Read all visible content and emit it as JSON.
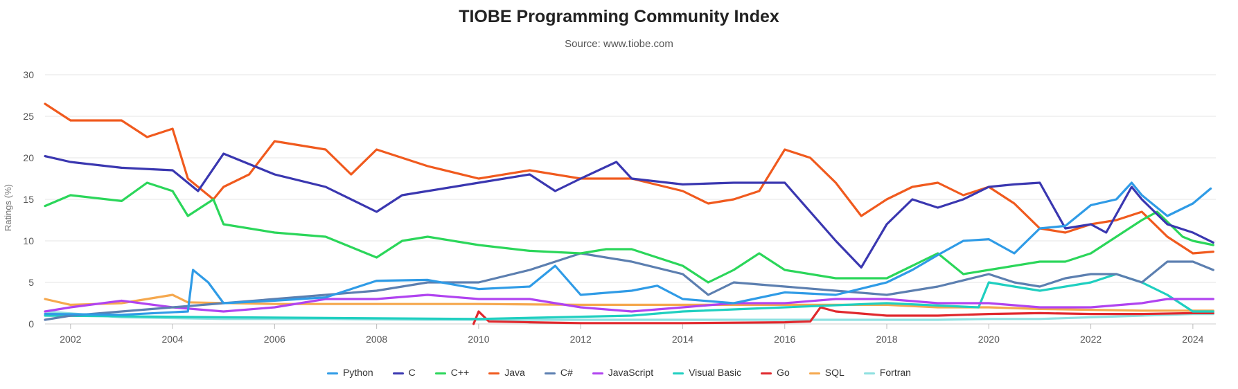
{
  "chart_data": {
    "type": "line",
    "title": "TIOBE Programming Community Index",
    "subtitle": "Source: www.tiobe.com",
    "xlabel": "",
    "ylabel": "Ratings (%)",
    "xlim": [
      2001.5,
      2024.45
    ],
    "ylim": [
      0,
      30
    ],
    "yticks": [
      0,
      5,
      10,
      15,
      20,
      25,
      30
    ],
    "xticks": [
      2002,
      2004,
      2006,
      2008,
      2010,
      2012,
      2014,
      2016,
      2018,
      2020,
      2022,
      2024
    ],
    "grid": true,
    "legend_position": "bottom",
    "series": [
      {
        "name": "Python",
        "color": "#2f9be6",
        "points": [
          [
            2001.5,
            1.2
          ],
          [
            2003,
            1.1
          ],
          [
            2004.3,
            1.5
          ],
          [
            2004.4,
            6.5
          ],
          [
            2004.7,
            5
          ],
          [
            2005,
            2.5
          ],
          [
            2006,
            2.8
          ],
          [
            2007,
            3.2
          ],
          [
            2008,
            5.2
          ],
          [
            2009,
            5.3
          ],
          [
            2010,
            4.2
          ],
          [
            2011,
            4.5
          ],
          [
            2011.5,
            7
          ],
          [
            2012,
            3.5
          ],
          [
            2013,
            4
          ],
          [
            2013.5,
            4.6
          ],
          [
            2014,
            3
          ],
          [
            2015,
            2.5
          ],
          [
            2016,
            3.8
          ],
          [
            2017,
            3.5
          ],
          [
            2018,
            5
          ],
          [
            2018.5,
            6.5
          ],
          [
            2019,
            8.3
          ],
          [
            2019.5,
            10
          ],
          [
            2020,
            10.2
          ],
          [
            2020.5,
            8.5
          ],
          [
            2021,
            11.5
          ],
          [
            2021.5,
            11.8
          ],
          [
            2022,
            14.3
          ],
          [
            2022.5,
            15
          ],
          [
            2022.8,
            17
          ],
          [
            2023,
            15.5
          ],
          [
            2023.5,
            13
          ],
          [
            2024,
            14.5
          ],
          [
            2024.35,
            16.3
          ]
        ]
      },
      {
        "name": "C",
        "color": "#3a37b0",
        "points": [
          [
            2001.5,
            20.2
          ],
          [
            2002,
            19.5
          ],
          [
            2003,
            18.8
          ],
          [
            2004,
            18.5
          ],
          [
            2004.5,
            16
          ],
          [
            2005,
            20.5
          ],
          [
            2006,
            18
          ],
          [
            2007,
            16.5
          ],
          [
            2008,
            13.5
          ],
          [
            2008.5,
            15.5
          ],
          [
            2009,
            16
          ],
          [
            2010,
            17
          ],
          [
            2011,
            18
          ],
          [
            2011.5,
            16
          ],
          [
            2012,
            17.5
          ],
          [
            2012.7,
            19.5
          ],
          [
            2013,
            17.5
          ],
          [
            2014,
            16.8
          ],
          [
            2015,
            17
          ],
          [
            2016,
            17
          ],
          [
            2017,
            10
          ],
          [
            2017.5,
            6.8
          ],
          [
            2018,
            12
          ],
          [
            2018.5,
            15
          ],
          [
            2019,
            14
          ],
          [
            2019.5,
            15
          ],
          [
            2020,
            16.5
          ],
          [
            2020.5,
            16.8
          ],
          [
            2021,
            17
          ],
          [
            2021.5,
            11.5
          ],
          [
            2022,
            12
          ],
          [
            2022.3,
            11
          ],
          [
            2022.8,
            16.5
          ],
          [
            2023,
            15
          ],
          [
            2023.5,
            12
          ],
          [
            2024,
            11
          ],
          [
            2024.4,
            9.8
          ]
        ]
      },
      {
        "name": "C++",
        "color": "#2bd65a",
        "points": [
          [
            2001.5,
            14.2
          ],
          [
            2002,
            15.5
          ],
          [
            2003,
            14.8
          ],
          [
            2003.5,
            17
          ],
          [
            2004,
            16
          ],
          [
            2004.3,
            13
          ],
          [
            2004.8,
            15
          ],
          [
            2005,
            12
          ],
          [
            2006,
            11
          ],
          [
            2007,
            10.5
          ],
          [
            2008,
            8
          ],
          [
            2008.5,
            10
          ],
          [
            2009,
            10.5
          ],
          [
            2010,
            9.5
          ],
          [
            2011,
            8.8
          ],
          [
            2012,
            8.5
          ],
          [
            2012.5,
            9
          ],
          [
            2013,
            9
          ],
          [
            2014,
            7
          ],
          [
            2014.5,
            5
          ],
          [
            2015,
            6.5
          ],
          [
            2015.5,
            8.5
          ],
          [
            2016,
            6.5
          ],
          [
            2017,
            5.5
          ],
          [
            2018,
            5.5
          ],
          [
            2018.5,
            7
          ],
          [
            2019,
            8.5
          ],
          [
            2019.5,
            6
          ],
          [
            2020,
            6.5
          ],
          [
            2021,
            7.5
          ],
          [
            2021.5,
            7.5
          ],
          [
            2022,
            8.5
          ],
          [
            2022.5,
            10.5
          ],
          [
            2023,
            12.5
          ],
          [
            2023.3,
            13.5
          ],
          [
            2023.8,
            10.5
          ],
          [
            2024,
            10
          ],
          [
            2024.4,
            9.5
          ]
        ]
      },
      {
        "name": "Java",
        "color": "#f05a1e",
        "points": [
          [
            2001.5,
            26.5
          ],
          [
            2002,
            24.5
          ],
          [
            2003,
            24.5
          ],
          [
            2003.5,
            22.5
          ],
          [
            2004,
            23.5
          ],
          [
            2004.3,
            17.5
          ],
          [
            2004.8,
            15
          ],
          [
            2005,
            16.5
          ],
          [
            2005.5,
            18
          ],
          [
            2006,
            22
          ],
          [
            2007,
            21
          ],
          [
            2007.5,
            18
          ],
          [
            2008,
            21
          ],
          [
            2009,
            19
          ],
          [
            2010,
            17.5
          ],
          [
            2011,
            18.5
          ],
          [
            2012,
            17.5
          ],
          [
            2013,
            17.5
          ],
          [
            2014,
            16
          ],
          [
            2014.5,
            14.5
          ],
          [
            2015,
            15
          ],
          [
            2015.5,
            16
          ],
          [
            2016,
            21
          ],
          [
            2016.5,
            20
          ],
          [
            2017,
            17
          ],
          [
            2017.5,
            13
          ],
          [
            2018,
            15
          ],
          [
            2018.5,
            16.5
          ],
          [
            2019,
            17
          ],
          [
            2019.5,
            15.5
          ],
          [
            2020,
            16.5
          ],
          [
            2020.5,
            14.5
          ],
          [
            2021,
            11.5
          ],
          [
            2021.5,
            11
          ],
          [
            2022,
            12
          ],
          [
            2022.5,
            12.5
          ],
          [
            2023,
            13.5
          ],
          [
            2023.5,
            10.5
          ],
          [
            2024,
            8.5
          ],
          [
            2024.4,
            8.7
          ]
        ]
      },
      {
        "name": "C#",
        "color": "#5c7fb0",
        "points": [
          [
            2001.5,
            0.5
          ],
          [
            2002,
            1
          ],
          [
            2003,
            1.5
          ],
          [
            2004,
            2
          ],
          [
            2005,
            2.5
          ],
          [
            2006,
            3
          ],
          [
            2007,
            3.5
          ],
          [
            2008,
            4
          ],
          [
            2009,
            5
          ],
          [
            2010,
            5
          ],
          [
            2011,
            6.5
          ],
          [
            2011.5,
            7.5
          ],
          [
            2012,
            8.5
          ],
          [
            2013,
            7.5
          ],
          [
            2014,
            6
          ],
          [
            2014.5,
            3.5
          ],
          [
            2015,
            5
          ],
          [
            2016,
            4.5
          ],
          [
            2017,
            4
          ],
          [
            2018,
            3.5
          ],
          [
            2019,
            4.5
          ],
          [
            2020,
            6
          ],
          [
            2020.5,
            5
          ],
          [
            2021,
            4.5
          ],
          [
            2021.5,
            5.5
          ],
          [
            2022,
            6
          ],
          [
            2022.5,
            6
          ],
          [
            2023,
            5
          ],
          [
            2023.5,
            7.5
          ],
          [
            2024,
            7.5
          ],
          [
            2024.4,
            6.5
          ]
        ]
      },
      {
        "name": "JavaScript",
        "color": "#b043f0",
        "points": [
          [
            2001.5,
            1.5
          ],
          [
            2002,
            2
          ],
          [
            2003,
            2.8
          ],
          [
            2004,
            2
          ],
          [
            2005,
            1.5
          ],
          [
            2006,
            2
          ],
          [
            2007,
            3
          ],
          [
            2008,
            3
          ],
          [
            2009,
            3.5
          ],
          [
            2010,
            3
          ],
          [
            2011,
            3
          ],
          [
            2012,
            2
          ],
          [
            2013,
            1.5
          ],
          [
            2014,
            2
          ],
          [
            2015,
            2.5
          ],
          [
            2016,
            2.5
          ],
          [
            2017,
            3
          ],
          [
            2018,
            3
          ],
          [
            2019,
            2.5
          ],
          [
            2020,
            2.5
          ],
          [
            2021,
            2
          ],
          [
            2022,
            2
          ],
          [
            2023,
            2.5
          ],
          [
            2023.5,
            3
          ],
          [
            2024,
            3
          ],
          [
            2024.4,
            3
          ]
        ]
      },
      {
        "name": "Visual Basic",
        "color": "#1fcfc0",
        "points": [
          [
            2001.5,
            1
          ],
          [
            2005,
            0.8
          ],
          [
            2010,
            0.6
          ],
          [
            2013,
            1
          ],
          [
            2014,
            1.5
          ],
          [
            2016,
            2
          ],
          [
            2018,
            2.5
          ],
          [
            2019.8,
            2
          ],
          [
            2020,
            5
          ],
          [
            2021,
            4
          ],
          [
            2022,
            5
          ],
          [
            2022.5,
            6
          ],
          [
            2023,
            5
          ],
          [
            2023.5,
            3.5
          ],
          [
            2024,
            1.5
          ],
          [
            2024.4,
            1.5
          ]
        ]
      },
      {
        "name": "Go",
        "color": "#e0282d",
        "points": [
          [
            2009.9,
            0
          ],
          [
            2010,
            1.5
          ],
          [
            2010.2,
            0.3
          ],
          [
            2011,
            0.2
          ],
          [
            2012,
            0.1
          ],
          [
            2014,
            0.1
          ],
          [
            2016,
            0.2
          ],
          [
            2016.5,
            0.3
          ],
          [
            2016.7,
            2
          ],
          [
            2017,
            1.5
          ],
          [
            2018,
            1
          ],
          [
            2019,
            1
          ],
          [
            2020,
            1.2
          ],
          [
            2021,
            1.3
          ],
          [
            2022,
            1.2
          ],
          [
            2023,
            1.2
          ],
          [
            2024,
            1.3
          ],
          [
            2024.4,
            1.3
          ]
        ]
      },
      {
        "name": "SQL",
        "color": "#f5a84e",
        "points": [
          [
            2001.5,
            3
          ],
          [
            2002,
            2.3
          ],
          [
            2003,
            2.5
          ],
          [
            2003.5,
            3
          ],
          [
            2004,
            3.5
          ],
          [
            2004.3,
            2.6
          ],
          [
            2006,
            2.4
          ],
          [
            2008,
            2.4
          ],
          [
            2010,
            2.4
          ],
          [
            2012,
            2.3
          ],
          [
            2014,
            2.3
          ],
          [
            2016,
            2.3
          ],
          [
            2018,
            2.3
          ],
          [
            2019,
            2
          ],
          [
            2020,
            2
          ],
          [
            2021,
            1.8
          ],
          [
            2022,
            1.7
          ],
          [
            2023,
            1.6
          ],
          [
            2024,
            1.6
          ],
          [
            2024.4,
            1.6
          ]
        ]
      },
      {
        "name": "Fortran",
        "color": "#8ee0e0",
        "points": [
          [
            2001.5,
            1.5
          ],
          [
            2003,
            0.8
          ],
          [
            2005,
            0.6
          ],
          [
            2007,
            0.6
          ],
          [
            2009,
            0.5
          ],
          [
            2011,
            0.5
          ],
          [
            2013,
            0.5
          ],
          [
            2015,
            0.5
          ],
          [
            2017,
            0.5
          ],
          [
            2019,
            0.5
          ],
          [
            2020,
            0.6
          ],
          [
            2021,
            0.6
          ],
          [
            2022,
            0.8
          ],
          [
            2023,
            1
          ],
          [
            2024,
            1.2
          ],
          [
            2024.4,
            1.2
          ]
        ]
      }
    ]
  }
}
